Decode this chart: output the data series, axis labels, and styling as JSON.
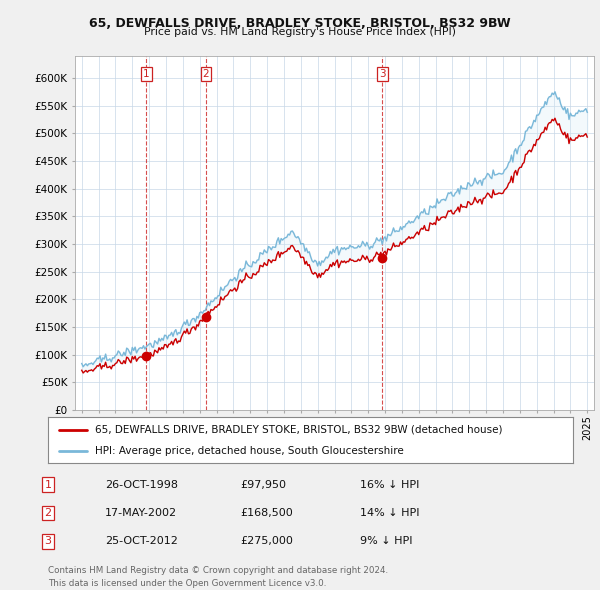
{
  "title1": "65, DEWFALLS DRIVE, BRADLEY STOKE, BRISTOL, BS32 9BW",
  "title2": "Price paid vs. HM Land Registry's House Price Index (HPI)",
  "ytick_labels": [
    "£0",
    "£50K",
    "£100K",
    "£150K",
    "£200K",
    "£250K",
    "£300K",
    "£350K",
    "£400K",
    "£450K",
    "£500K",
    "£550K",
    "£600K"
  ],
  "yticks": [
    0,
    50000,
    100000,
    150000,
    200000,
    250000,
    300000,
    350000,
    400000,
    450000,
    500000,
    550000,
    600000
  ],
  "sale_years": [
    1998.831,
    2002.369,
    2012.831
  ],
  "sale_prices": [
    97950,
    168500,
    275000
  ],
  "sale_labels": [
    "1",
    "2",
    "3"
  ],
  "hpi_color": "#7ab8d9",
  "hpi_fill_color": "#d0e8f5",
  "price_color": "#cc0000",
  "vline_color": "#cc2222",
  "legend_house": "65, DEWFALLS DRIVE, BRADLEY STOKE, BRISTOL, BS32 9BW (detached house)",
  "legend_hpi": "HPI: Average price, detached house, South Gloucestershire",
  "table_data": [
    [
      "1",
      "26-OCT-1998",
      "£97,950",
      "16% ↓ HPI"
    ],
    [
      "2",
      "17-MAY-2002",
      "£168,500",
      "14% ↓ HPI"
    ],
    [
      "3",
      "25-OCT-2012",
      "£275,000",
      "9% ↓ HPI"
    ]
  ],
  "footer1": "Contains HM Land Registry data © Crown copyright and database right 2024.",
  "footer2": "This data is licensed under the Open Government Licence v3.0.",
  "background_color": "#f0f0f0",
  "plot_bg_color": "#ffffff",
  "grid_color": "#c8d8e8"
}
